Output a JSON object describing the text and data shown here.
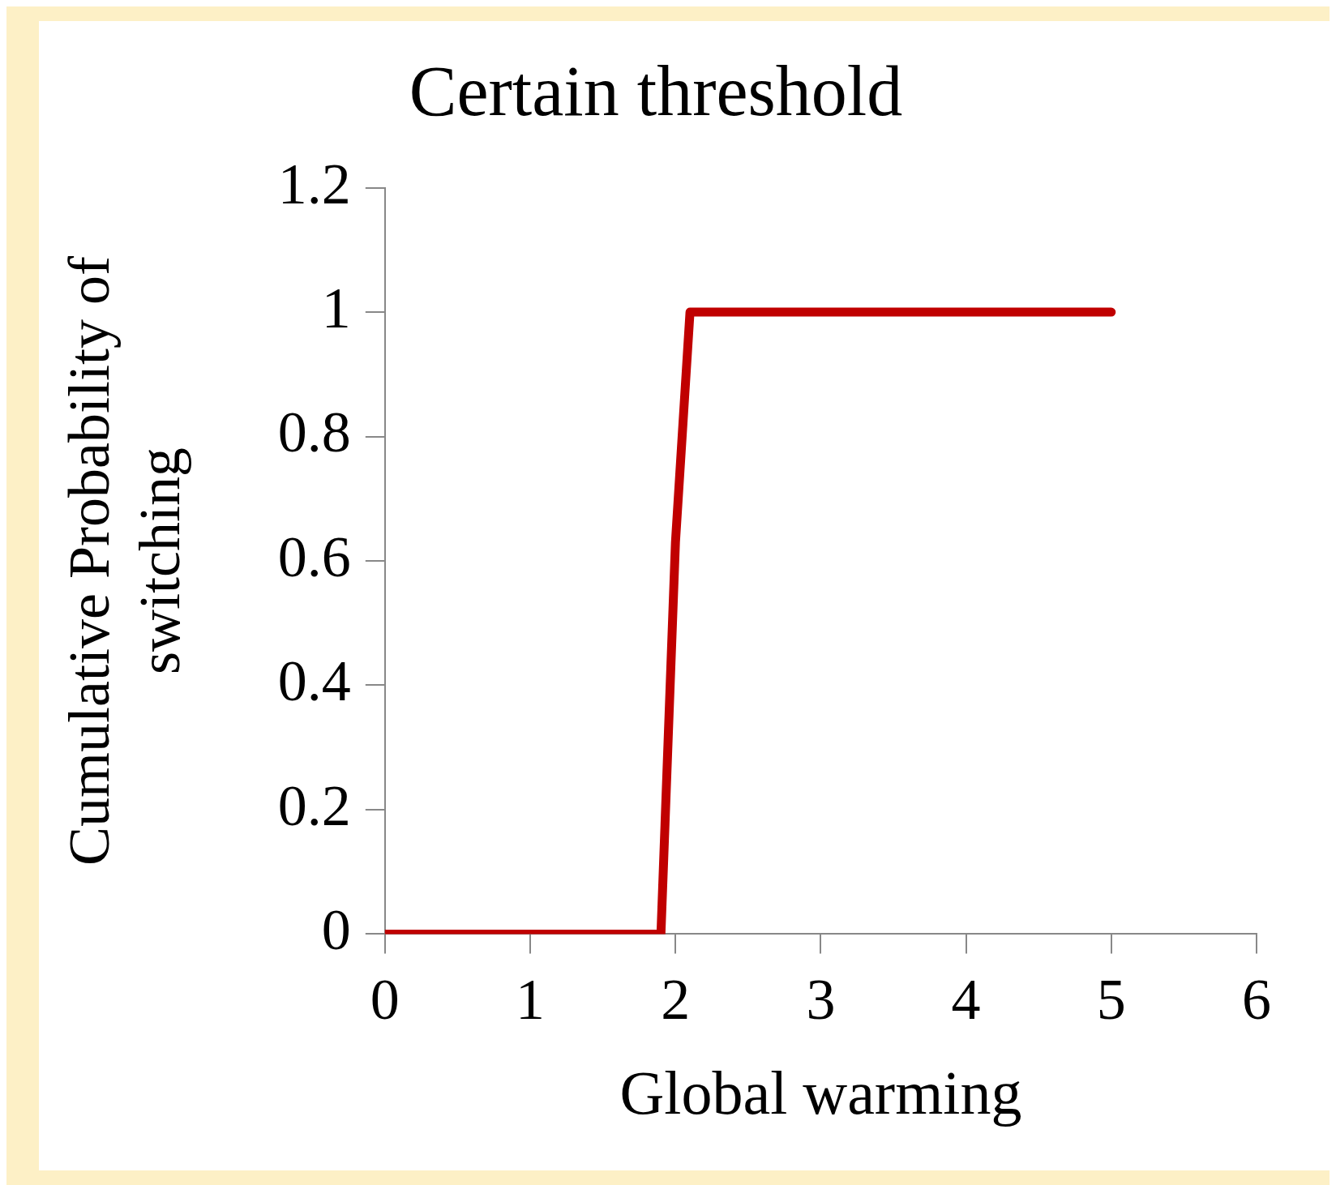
{
  "chart_data": {
    "type": "line",
    "title": "Certain threshold",
    "xlabel": "Global warming",
    "ylabel": "Cumulative Probability of switching",
    "x": [
      0,
      1.9,
      2.0,
      2.1,
      5
    ],
    "series": [
      {
        "color": "#c00000",
        "values": [
          0,
          0,
          0.63,
          1,
          1
        ]
      }
    ],
    "xlim": [
      0,
      6
    ],
    "xticks": [
      0,
      1,
      2,
      3,
      4,
      5,
      6
    ],
    "ylim": [
      0,
      1.2
    ],
    "yticks": [
      0,
      0.2,
      0.4,
      0.6,
      0.8,
      1,
      1.2
    ],
    "grid": false,
    "legend": false,
    "marker": "none",
    "line_style": "solid"
  }
}
